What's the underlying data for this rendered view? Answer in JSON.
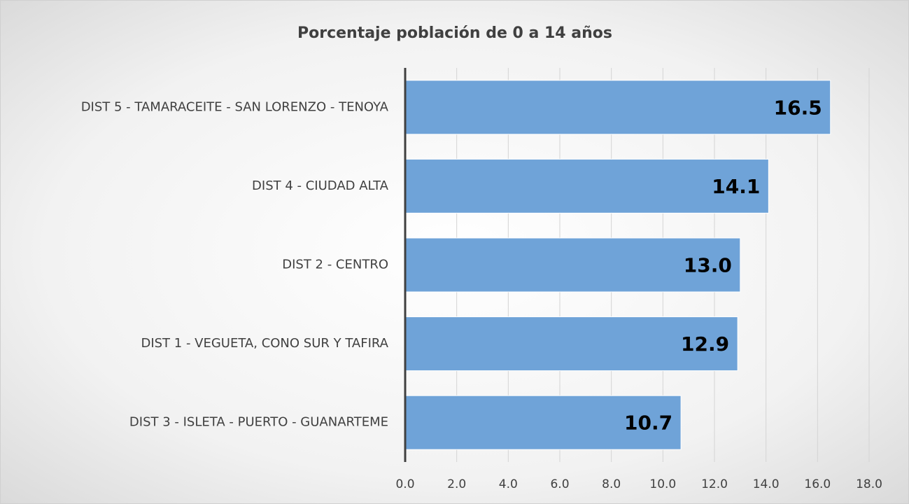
{
  "chart_data": {
    "type": "barh",
    "title": "Porcentaje población de 0 a 14 años",
    "categories": [
      "DIST 5 - TAMARACEITE - SAN LORENZO - TENOYA",
      "DIST 4 - CIUDAD ALTA",
      "DIST 2 - CENTRO",
      "DIST 1 - VEGUETA, CONO SUR Y TAFIRA",
      "DIST 3 - ISLETA - PUERTO - GUANARTEME"
    ],
    "values": [
      16.5,
      14.1,
      13.0,
      12.9,
      10.7
    ],
    "value_labels": [
      "16.5",
      "14.1",
      "13.0",
      "12.9",
      "10.7"
    ],
    "color": "#6fa3d8",
    "xlim": [
      0,
      18
    ],
    "xticks": [
      {
        "value": 0,
        "label": "0.0"
      },
      {
        "value": 2,
        "label": "2.0"
      },
      {
        "value": 4,
        "label": "4.0"
      },
      {
        "value": 6,
        "label": "6.0"
      },
      {
        "value": 8,
        "label": "8.0"
      },
      {
        "value": 10,
        "label": "10.0"
      },
      {
        "value": 12,
        "label": "12.0"
      },
      {
        "value": 14,
        "label": "14.0"
      },
      {
        "value": 16,
        "label": "16.0"
      },
      {
        "value": 18,
        "label": "18.0"
      }
    ],
    "grid": true
  }
}
